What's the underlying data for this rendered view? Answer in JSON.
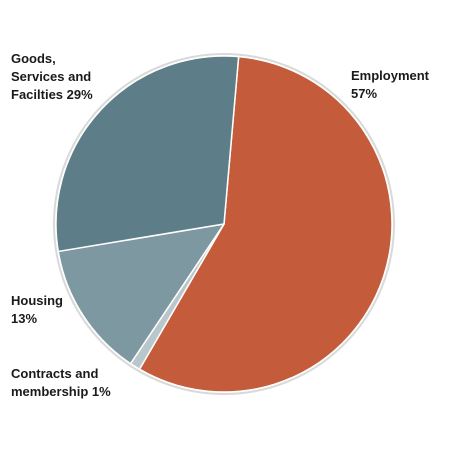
{
  "chart_data": {
    "type": "pie",
    "title": "",
    "start_angle_deg": 5,
    "direction": "clockwise",
    "slices": [
      {
        "name": "Employment",
        "value": 57,
        "label": "Employment\n57%",
        "color": "#c45b3b"
      },
      {
        "name": "Contracts and membership",
        "value": 1,
        "label": "Contracts and\nmembership 1%",
        "color": "#b9c7cd"
      },
      {
        "name": "Housing",
        "value": 13,
        "label": "Housing\n13%",
        "color": "#7e98a2"
      },
      {
        "name": "Goods, Services and Facilties",
        "value": 29,
        "label": "Goods,\nServices and\nFacilties 29%",
        "color": "#5d7d89"
      }
    ]
  }
}
